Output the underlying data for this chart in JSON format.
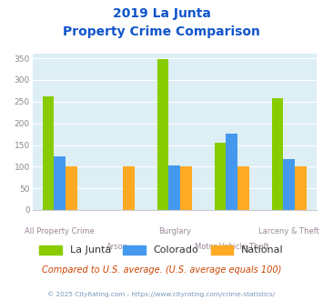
{
  "title_line1": "2019 La Junta",
  "title_line2": "Property Crime Comparison",
  "categories": [
    "All Property Crime",
    "Arson",
    "Burglary",
    "Motor Vehicle Theft",
    "Larceny & Theft"
  ],
  "series": {
    "La Junta": [
      262,
      0,
      348,
      156,
      259
    ],
    "Colorado": [
      124,
      0,
      103,
      176,
      118
    ],
    "National": [
      100,
      100,
      100,
      100,
      100
    ]
  },
  "colors": {
    "La Junta": "#88cc00",
    "Colorado": "#4499ee",
    "National": "#ffaa22"
  },
  "ylim": [
    0,
    360
  ],
  "yticks": [
    0,
    50,
    100,
    150,
    200,
    250,
    300,
    350
  ],
  "subtitle": "Compared to U.S. average. (U.S. average equals 100)",
  "footer": "© 2025 CityRating.com - https://www.cityrating.com/crime-statistics/",
  "title_color": "#1155cc",
  "subtitle_color": "#cc4400",
  "footer_color": "#7799bb",
  "bg_color": "#ddeef5",
  "grid_color": "#ffffff",
  "cat_label_color": "#998899",
  "ytick_color": "#888888"
}
